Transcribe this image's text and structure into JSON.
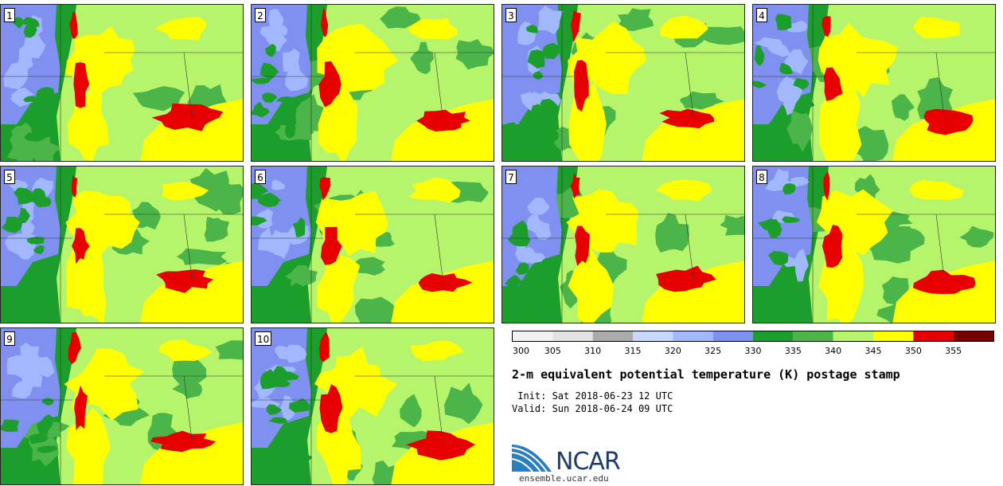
{
  "title": "2-m equivalent potential temperature (K) postage stamp",
  "init_line": " Init: Sat 2018-06-23 12 UTC",
  "valid_line": "Valid: Sun 2018-06-24 09 UTC",
  "url": "ensemble.ucar.edu",
  "logo_text": "NCAR",
  "colorbar": {
    "ticks": [
      "300",
      "305",
      "310",
      "315",
      "320",
      "325",
      "330",
      "335",
      "340",
      "345",
      "350",
      "355"
    ],
    "colors": [
      "#f2f2f2",
      "#e2e2e2",
      "#aaaaaa",
      "#c7d8ff",
      "#a1b8ff",
      "#7f90f0",
      "#1b9e2b",
      "#4cb54a",
      "#b6f56b",
      "#ffff00",
      "#e60000",
      "#7a0000"
    ]
  },
  "panels": [
    {
      "label": "1"
    },
    {
      "label": "2"
    },
    {
      "label": "3"
    },
    {
      "label": "4"
    },
    {
      "label": "5"
    },
    {
      "label": "6"
    },
    {
      "label": "7"
    },
    {
      "label": "8"
    },
    {
      "label": "9"
    },
    {
      "label": "10"
    }
  ]
}
